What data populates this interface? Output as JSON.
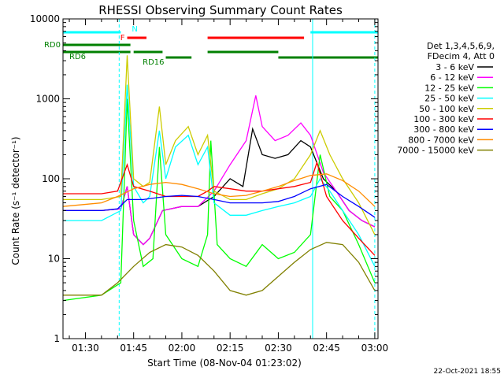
{
  "chart_data": {
    "type": "line",
    "title": "RHESSI Observing Summary Count Rates",
    "xlabel": "Start Time (08-Nov-04 01:23:02)",
    "ylabel": "Count Rate (s⁻¹ detector⁻¹)",
    "y_scale": "log",
    "ylim": [
      1,
      10000
    ],
    "xlim": [
      "01:23:02",
      "03:01:00"
    ],
    "x_ticks": [
      "01:30",
      "01:45",
      "02:00",
      "02:15",
      "02:30",
      "02:45",
      "03:00"
    ],
    "y_ticks": [
      "1",
      "10",
      "100",
      "1000",
      "10000"
    ],
    "legend_header": [
      "Det 1,3,4,5,6,9,",
      "FDecim 4, Att 0"
    ],
    "legend_placement": "right",
    "footer_date": "22-Oct-2021 18:55",
    "series": [
      {
        "name": "3 - 6 keV",
        "color": "#000000",
        "points": [
          [
            "01:23",
            40
          ],
          [
            "01:35",
            40
          ],
          [
            "01:41",
            42
          ],
          [
            "01:43",
            80
          ],
          [
            "01:45",
            20
          ],
          [
            "01:48",
            15
          ],
          [
            "01:50",
            18
          ],
          [
            "01:54",
            40
          ],
          [
            "02:00",
            45
          ],
          [
            "02:05",
            45
          ],
          [
            "02:10",
            60
          ],
          [
            "02:15",
            100
          ],
          [
            "02:19",
            80
          ],
          [
            "02:22",
            420
          ],
          [
            "02:25",
            200
          ],
          [
            "02:29",
            180
          ],
          [
            "02:33",
            200
          ],
          [
            "02:37",
            300
          ],
          [
            "02:40",
            250
          ],
          [
            "02:44",
            100
          ],
          [
            "02:48",
            70
          ],
          [
            "02:52",
            40
          ],
          [
            "02:56",
            30
          ],
          [
            "03:00",
            25
          ]
        ]
      },
      {
        "name": "6 - 12 keV",
        "color": "#ff00ff",
        "points": [
          [
            "01:23",
            40
          ],
          [
            "01:35",
            40
          ],
          [
            "01:41",
            42
          ],
          [
            "01:43",
            80
          ],
          [
            "01:45",
            20
          ],
          [
            "01:48",
            15
          ],
          [
            "01:50",
            18
          ],
          [
            "01:54",
            40
          ],
          [
            "02:00",
            45
          ],
          [
            "02:05",
            45
          ],
          [
            "02:10",
            70
          ],
          [
            "02:15",
            150
          ],
          [
            "02:20",
            300
          ],
          [
            "02:23",
            1100
          ],
          [
            "02:25",
            450
          ],
          [
            "02:29",
            300
          ],
          [
            "02:33",
            350
          ],
          [
            "02:37",
            500
          ],
          [
            "02:40",
            350
          ],
          [
            "02:44",
            120
          ],
          [
            "02:48",
            70
          ],
          [
            "02:52",
            40
          ],
          [
            "02:56",
            30
          ],
          [
            "03:00",
            25
          ]
        ]
      },
      {
        "name": "12 - 25 keV",
        "color": "#00ff00",
        "points": [
          [
            "01:23",
            3
          ],
          [
            "01:35",
            3.5
          ],
          [
            "01:41",
            5
          ],
          [
            "01:43",
            1000
          ],
          [
            "01:45",
            30
          ],
          [
            "01:48",
            8
          ],
          [
            "01:51",
            10
          ],
          [
            "01:53",
            250
          ],
          [
            "01:55",
            20
          ],
          [
            "02:00",
            10
          ],
          [
            "02:05",
            8
          ],
          [
            "02:08",
            20
          ],
          [
            "02:09",
            300
          ],
          [
            "02:11",
            15
          ],
          [
            "02:15",
            10
          ],
          [
            "02:20",
            8
          ],
          [
            "02:25",
            15
          ],
          [
            "02:30",
            10
          ],
          [
            "02:35",
            12
          ],
          [
            "02:40",
            20
          ],
          [
            "02:43",
            200
          ],
          [
            "02:46",
            60
          ],
          [
            "02:50",
            40
          ],
          [
            "02:55",
            15
          ],
          [
            "03:00",
            5
          ]
        ]
      },
      {
        "name": "25 - 50 keV",
        "color": "#00ffff",
        "points": [
          [
            "01:23",
            30
          ],
          [
            "01:35",
            30
          ],
          [
            "01:41",
            40
          ],
          [
            "01:43",
            1500
          ],
          [
            "01:45",
            80
          ],
          [
            "01:48",
            50
          ],
          [
            "01:50",
            60
          ],
          [
            "01:53",
            400
          ],
          [
            "01:55",
            100
          ],
          [
            "01:58",
            250
          ],
          [
            "02:02",
            350
          ],
          [
            "02:05",
            150
          ],
          [
            "02:08",
            250
          ],
          [
            "02:10",
            50
          ],
          [
            "02:15",
            35
          ],
          [
            "02:20",
            35
          ],
          [
            "02:25",
            40
          ],
          [
            "02:30",
            45
          ],
          [
            "02:35",
            50
          ],
          [
            "02:40",
            60
          ],
          [
            "02:43",
            100
          ],
          [
            "02:46",
            70
          ],
          [
            "02:50",
            40
          ],
          [
            "02:55",
            20
          ],
          [
            "03:00",
            8
          ]
        ]
      },
      {
        "name": "50 - 100 keV",
        "color": "#cccc00",
        "points": [
          [
            "01:23",
            55
          ],
          [
            "01:35",
            55
          ],
          [
            "01:41",
            60
          ],
          [
            "01:43",
            3500
          ],
          [
            "01:45",
            100
          ],
          [
            "01:48",
            80
          ],
          [
            "01:50",
            90
          ],
          [
            "01:53",
            800
          ],
          [
            "01:55",
            150
          ],
          [
            "01:58",
            300
          ],
          [
            "02:02",
            450
          ],
          [
            "02:05",
            200
          ],
          [
            "02:08",
            350
          ],
          [
            "02:10",
            70
          ],
          [
            "02:15",
            55
          ],
          [
            "02:20",
            55
          ],
          [
            "02:25",
            65
          ],
          [
            "02:30",
            75
          ],
          [
            "02:35",
            100
          ],
          [
            "02:40",
            200
          ],
          [
            "02:43",
            400
          ],
          [
            "02:46",
            200
          ],
          [
            "02:50",
            100
          ],
          [
            "02:55",
            50
          ],
          [
            "03:00",
            20
          ]
        ]
      },
      {
        "name": "100 - 300 keV",
        "color": "#ff0000",
        "points": [
          [
            "01:23",
            65
          ],
          [
            "01:35",
            65
          ],
          [
            "01:40",
            70
          ],
          [
            "01:43",
            150
          ],
          [
            "01:45",
            80
          ],
          [
            "01:50",
            70
          ],
          [
            "01:55",
            60
          ],
          [
            "02:00",
            60
          ],
          [
            "02:05",
            60
          ],
          [
            "02:08",
            70
          ],
          [
            "02:10",
            80
          ],
          [
            "02:15",
            75
          ],
          [
            "02:20",
            70
          ],
          [
            "02:25",
            70
          ],
          [
            "02:30",
            75
          ],
          [
            "02:35",
            80
          ],
          [
            "02:40",
            90
          ],
          [
            "02:42",
            160
          ],
          [
            "02:45",
            60
          ],
          [
            "02:50",
            30
          ],
          [
            "02:55",
            18
          ],
          [
            "03:00",
            11
          ]
        ]
      },
      {
        "name": "300 - 800 keV",
        "color": "#0000ff",
        "points": [
          [
            "01:23",
            40
          ],
          [
            "01:35",
            40
          ],
          [
            "01:40",
            42
          ],
          [
            "01:43",
            55
          ],
          [
            "01:48",
            55
          ],
          [
            "01:55",
            60
          ],
          [
            "02:00",
            62
          ],
          [
            "02:05",
            60
          ],
          [
            "02:10",
            55
          ],
          [
            "02:15",
            50
          ],
          [
            "02:20",
            50
          ],
          [
            "02:25",
            50
          ],
          [
            "02:30",
            52
          ],
          [
            "02:35",
            60
          ],
          [
            "02:40",
            75
          ],
          [
            "02:45",
            85
          ],
          [
            "02:50",
            60
          ],
          [
            "02:55",
            45
          ],
          [
            "03:00",
            33
          ]
        ]
      },
      {
        "name": "800 - 7000 keV",
        "color": "#ff8c00",
        "points": [
          [
            "01:23",
            45
          ],
          [
            "01:35",
            50
          ],
          [
            "01:40",
            60
          ],
          [
            "01:45",
            75
          ],
          [
            "01:50",
            85
          ],
          [
            "01:55",
            90
          ],
          [
            "02:00",
            85
          ],
          [
            "02:05",
            75
          ],
          [
            "02:10",
            65
          ],
          [
            "02:15",
            60
          ],
          [
            "02:20",
            62
          ],
          [
            "02:25",
            70
          ],
          [
            "02:30",
            80
          ],
          [
            "02:35",
            95
          ],
          [
            "02:40",
            110
          ],
          [
            "02:45",
            115
          ],
          [
            "02:50",
            95
          ],
          [
            "02:55",
            70
          ],
          [
            "03:00",
            45
          ]
        ]
      },
      {
        "name": "7000 - 15000 keV",
        "color": "#808000",
        "points": [
          [
            "01:23",
            3.5
          ],
          [
            "01:35",
            3.5
          ],
          [
            "01:40",
            5
          ],
          [
            "01:45",
            8
          ],
          [
            "01:50",
            12
          ],
          [
            "01:55",
            15
          ],
          [
            "02:00",
            14
          ],
          [
            "02:05",
            11
          ],
          [
            "02:10",
            7
          ],
          [
            "02:15",
            4
          ],
          [
            "02:20",
            3.5
          ],
          [
            "02:25",
            4
          ],
          [
            "02:30",
            6
          ],
          [
            "02:35",
            9
          ],
          [
            "02:40",
            13
          ],
          [
            "02:45",
            16
          ],
          [
            "02:50",
            15
          ],
          [
            "02:55",
            9
          ],
          [
            "03:00",
            4
          ]
        ]
      }
    ],
    "state_bars": [
      {
        "label": "N",
        "color": "#00ffff",
        "label_color": "#00ffff",
        "segments": [
          [
            "01:23",
            "01:41"
          ],
          [
            "02:40",
            "03:01"
          ]
        ]
      },
      {
        "label": "F",
        "color": "#ff0000",
        "label_color": "#ff0000",
        "segments": [
          [
            "01:43",
            "01:49"
          ],
          [
            "02:08",
            "02:38"
          ]
        ]
      },
      {
        "label": "RD0",
        "color": "#008000",
        "label_color": "#008000",
        "segments": [
          [
            "01:23",
            "01:44"
          ]
        ]
      },
      {
        "label": "RD6",
        "color": "#008000",
        "label_color": "#008000",
        "segments": [
          [
            "01:23",
            "01:44"
          ],
          [
            "01:45",
            "01:54"
          ],
          [
            "02:08",
            "02:30"
          ]
        ]
      },
      {
        "label": "RD16",
        "color": "#008000",
        "label_color": "#008000",
        "segments": [
          [
            "01:55",
            "02:03"
          ],
          [
            "02:30",
            "03:01"
          ]
        ]
      }
    ],
    "markers": [
      {
        "time": "01:40:30",
        "color": "#00ffff",
        "style": "dashed"
      },
      {
        "time": "02:40:40",
        "color": "#00ffff",
        "style": "solid"
      },
      {
        "time": "03:00:00",
        "color": "#00ffff",
        "style": "dashed"
      }
    ]
  }
}
